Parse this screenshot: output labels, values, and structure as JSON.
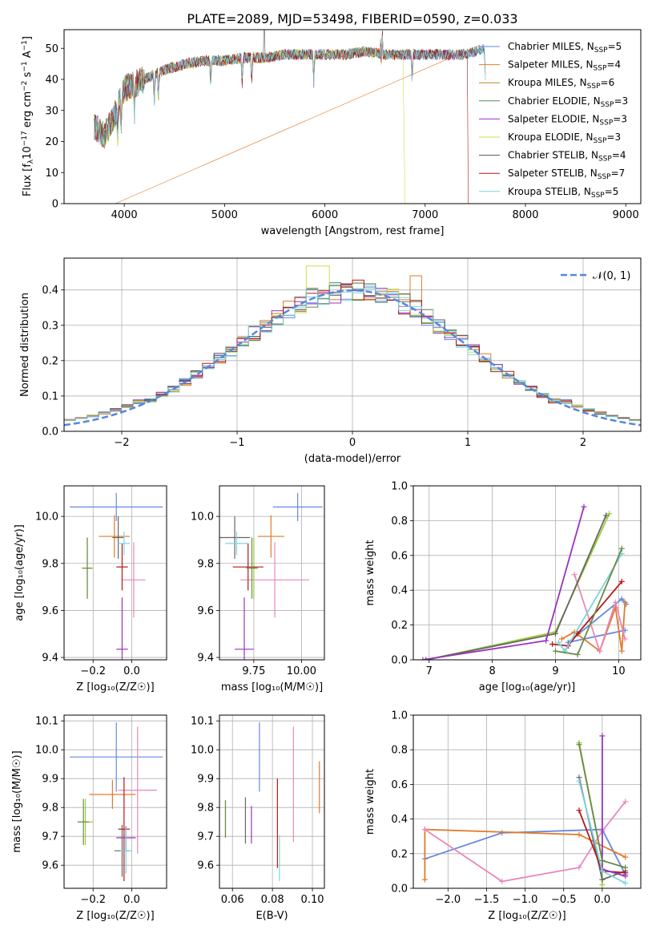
{
  "figure_title": "PLATE=2089, MJD=53498, FIBERID=0590, z=0.033",
  "palette": [
    "#6688dd",
    "#e07b2a",
    "#b58a2a",
    "#5a8a5a",
    "#9933bb",
    "#c8e04a",
    "#555555",
    "#b51818",
    "#7dd4dc"
  ],
  "subplot_colors": [
    "#6688dd",
    "#e07b2a",
    "#e888bb",
    "#9acd32",
    "#666666",
    "#b51818",
    "#9933bb",
    "#7dd4dc",
    "#6a8a4a"
  ],
  "chart_data": [
    {
      "id": "spectrum",
      "type": "line",
      "xlabel": "wavelength [Angstrom, rest frame]",
      "ylabel_parts": {
        "main": "Flux [f",
        "sub": "λ",
        "mid": "10",
        "sup1": "−17",
        "rest": " erg cm",
        "sup2": "−2",
        "rest2": " s",
        "sup3": "−1",
        "rest3": " A",
        "sup4": "−1",
        "end": "]"
      },
      "xlim": [
        3400,
        9150
      ],
      "ylim": [
        0,
        56
      ],
      "xticks": [
        4000,
        5000,
        6000,
        7000,
        8000,
        9000
      ],
      "yticks": [
        0,
        10,
        20,
        30,
        40,
        50
      ],
      "continuum": {
        "x": [
          3700,
          3800,
          3900,
          4000,
          4200,
          4400,
          4600,
          4800,
          5000,
          5200,
          5400,
          5600,
          5800,
          6000,
          6200,
          6400,
          6600,
          6800,
          7000,
          7200,
          7400,
          7600
        ],
        "y": [
          25,
          22,
          28,
          37,
          40,
          43,
          45,
          46,
          46,
          47,
          47,
          48,
          48,
          48,
          48,
          49,
          48,
          48,
          48,
          48,
          48,
          50
        ]
      },
      "legend": [
        {
          "name": "Chabrier MILES",
          "n": "5"
        },
        {
          "name": "Salpeter MILES",
          "n": "4"
        },
        {
          "name": "Kroupa MILES",
          "n": "6"
        },
        {
          "name": "Chabrier ELODIE",
          "n": "3"
        },
        {
          "name": "Salpeter ELODIE",
          "n": "3"
        },
        {
          "name": "Kroupa ELODIE",
          "n": "3"
        },
        {
          "name": "Chabrier STELIB",
          "n": "4"
        },
        {
          "name": "Salpeter STELIB",
          "n": "7"
        },
        {
          "name": "Kroupa STELIB",
          "n": "5"
        }
      ],
      "legend_n_label": "N",
      "legend_n_sub": "SSP"
    },
    {
      "id": "residuals",
      "type": "histogram",
      "xlabel": "(data-model)/error",
      "ylabel": "Normed distribution",
      "xlim": [
        -2.5,
        2.5
      ],
      "ylim": [
        0,
        0.49
      ],
      "xticks": [
        -2,
        -1,
        0,
        1,
        2
      ],
      "yticks": [
        0.0,
        0.1,
        0.2,
        0.3,
        0.4
      ],
      "bin_width": 0.1,
      "gaussian_label": "𝒩(0, 1)",
      "gaussian_color": "#5588dd"
    },
    {
      "id": "Z_vs_age",
      "type": "errorbar",
      "xlabel": "Z [log₁₀(Z/Z☉)]",
      "ylabel": "age  [log₁₀(age/yr)]",
      "xlim": [
        -0.35,
        0.18
      ],
      "ylim": [
        9.39,
        10.13
      ],
      "xticks": [
        -0.2,
        0.0
      ],
      "yticks": [
        9.4,
        9.6,
        9.8,
        10.0
      ],
      "points": [
        {
          "x": -0.08,
          "y": 10.04,
          "xerr": 0.24,
          "yerr": 0.06
        },
        {
          "x": -0.09,
          "y": 9.915,
          "xerr": 0.08,
          "yerr": 0.09
        },
        {
          "x": 0.01,
          "y": 9.73,
          "xerr": 0.06,
          "yerr": 0.16
        },
        {
          "x": -0.23,
          "y": 9.78,
          "xerr": 0.03,
          "yerr": 0.13
        },
        {
          "x": -0.07,
          "y": 9.91,
          "xerr": 0.03,
          "yerr": 0.09
        },
        {
          "x": -0.05,
          "y": 9.785,
          "xerr": 0.03,
          "yerr": 0.1
        },
        {
          "x": -0.05,
          "y": 9.435,
          "xerr": 0.03,
          "yerr": 0.22
        },
        {
          "x": -0.04,
          "y": 9.885,
          "xerr": 0.03,
          "yerr": 0.05
        },
        {
          "x": -0.23,
          "y": 9.78,
          "xerr": 0.025,
          "yerr": 0.13
        }
      ]
    },
    {
      "id": "mass_vs_age",
      "type": "errorbar",
      "xlabel": "mass [log₁₀(M/M☉)]",
      "ylabel": "",
      "xlim": [
        9.57,
        10.12
      ],
      "ylim": [
        9.39,
        10.13
      ],
      "xticks": [
        9.75,
        10.0
      ],
      "yticks": [
        9.4,
        9.6,
        9.8,
        10.0
      ],
      "points": [
        {
          "x": 9.98,
          "y": 10.04,
          "xerr": 0.13,
          "yerr": 0.06
        },
        {
          "x": 9.84,
          "y": 9.915,
          "xerr": 0.07,
          "yerr": 0.09
        },
        {
          "x": 9.86,
          "y": 9.73,
          "xerr": 0.18,
          "yerr": 0.16
        },
        {
          "x": 9.75,
          "y": 9.78,
          "xerr": 0.02,
          "yerr": 0.13
        },
        {
          "x": 9.65,
          "y": 9.91,
          "xerr": 0.08,
          "yerr": 0.09
        },
        {
          "x": 9.72,
          "y": 9.785,
          "xerr": 0.08,
          "yerr": 0.1
        },
        {
          "x": 9.7,
          "y": 9.435,
          "xerr": 0.05,
          "yerr": 0.22
        },
        {
          "x": 9.66,
          "y": 9.885,
          "xerr": 0.06,
          "yerr": 0.05
        },
        {
          "x": 9.74,
          "y": 9.78,
          "xerr": 0.03,
          "yerr": 0.13
        }
      ]
    },
    {
      "id": "age_weight",
      "type": "line",
      "xlabel": "age  [log₁₀(age/yr)]",
      "ylabel": "mass weight",
      "xlim": [
        6.75,
        10.35
      ],
      "ylim": [
        0,
        1
      ],
      "xticks": [
        7,
        8,
        9,
        10
      ],
      "yticks": [
        0.0,
        0.2,
        0.4,
        0.6,
        0.8,
        1.0
      ],
      "series": [
        {
          "x": [
            10.1,
            9.2,
            10.05,
            10.12
          ],
          "y": [
            0.17,
            0.1,
            0.35,
            0.32
          ]
        },
        {
          "x": [
            9.1,
            9.3,
            9.7,
            9.95,
            10.05,
            10.1
          ],
          "y": [
            0.12,
            0.16,
            0.05,
            0.3,
            0.05,
            0.33
          ]
        },
        {
          "x": [
            9.3,
            9.7,
            9.95,
            10.1
          ],
          "y": [
            0.49,
            0.05,
            0.33,
            0.12
          ]
        },
        {
          "x": [
            6.95,
            9.0,
            9.85
          ],
          "y": [
            0.0,
            0.16,
            0.84
          ]
        },
        {
          "x": [
            6.95,
            9.0,
            9.8
          ],
          "y": [
            0.0,
            0.15,
            0.83
          ]
        },
        {
          "x": [
            8.95,
            9.2,
            9.35,
            10.05
          ],
          "y": [
            0.09,
            0.08,
            0.15,
            0.45
          ]
        },
        {
          "x": [
            6.9,
            8.85,
            9.45
          ],
          "y": [
            0.0,
            0.11,
            0.88
          ]
        },
        {
          "x": [
            9.05,
            9.15,
            10.05
          ],
          "y": [
            0.1,
            0.05,
            0.61
          ]
        },
        {
          "x": [
            9.0,
            9.35,
            10.05
          ],
          "y": [
            0.05,
            0.03,
            0.64
          ]
        }
      ]
    },
    {
      "id": "Z_vs_mass",
      "type": "errorbar",
      "xlabel": "Z [log₁₀(Z/Z☉)]",
      "ylabel": "mass [log₁₀(M/M☉)]",
      "xlim": [
        -0.35,
        0.18
      ],
      "ylim": [
        9.52,
        10.12
      ],
      "xticks": [
        -0.2,
        0.0
      ],
      "yticks": [
        9.6,
        9.7,
        9.8,
        9.9,
        10.0,
        10.1
      ],
      "points": [
        {
          "x": -0.08,
          "y": 9.975,
          "xerr": 0.24,
          "yerr": 0.12
        },
        {
          "x": -0.1,
          "y": 9.845,
          "xerr": 0.12,
          "yerr": 0.05
        },
        {
          "x": 0.03,
          "y": 9.86,
          "xerr": 0.1,
          "yerr": 0.22
        },
        {
          "x": -0.24,
          "y": 9.75,
          "xerr": 0.04,
          "yerr": 0.08
        },
        {
          "x": -0.05,
          "y": 9.65,
          "xerr": 0.04,
          "yerr": 0.09
        },
        {
          "x": -0.04,
          "y": 9.725,
          "xerr": 0.03,
          "yerr": 0.18
        },
        {
          "x": -0.03,
          "y": 9.695,
          "xerr": 0.05,
          "yerr": 0.04
        },
        {
          "x": -0.03,
          "y": 9.65,
          "xerr": 0.03,
          "yerr": 0.08
        },
        {
          "x": -0.25,
          "y": 9.75,
          "xerr": 0.03,
          "yerr": 0.08
        }
      ]
    },
    {
      "id": "ebv_vs_mass",
      "type": "errorbar",
      "xlabel": "E(B-V)",
      "ylabel": "",
      "xlim": [
        0.0535,
        0.106
      ],
      "ylim": [
        9.52,
        10.12
      ],
      "xticks": [
        0.06,
        0.08,
        0.1
      ],
      "yticks": [
        9.6,
        9.7,
        9.8,
        9.9,
        10.0,
        10.1
      ],
      "points": [
        {
          "x": 0.0735,
          "y": 9.975,
          "xerr": 0,
          "yerr": 0.12
        },
        {
          "x": 0.1035,
          "y": 9.87,
          "xerr": 0,
          "yerr": 0.09
        },
        {
          "x": 0.0905,
          "y": 9.88,
          "xerr": 0,
          "yerr": 0.2
        },
        {
          "x": 0.0565,
          "y": 9.76,
          "xerr": 0,
          "yerr": 0.065
        },
        {
          "x": 0.0665,
          "y": 9.755,
          "xerr": 0,
          "yerr": 0.08
        },
        {
          "x": 0.0825,
          "y": 9.745,
          "xerr": 0,
          "yerr": 0.155
        },
        {
          "x": 0.0695,
          "y": 9.74,
          "xerr": 0,
          "yerr": 0.065
        },
        {
          "x": 0.0835,
          "y": 9.625,
          "xerr": 0,
          "yerr": 0.08
        },
        {
          "x": 0.0565,
          "y": 9.76,
          "xerr": 0,
          "yerr": 0.065
        }
      ]
    },
    {
      "id": "Z_weight",
      "type": "line",
      "xlabel": "Z [log₁₀(Z/Z☉)]",
      "ylabel": "mass weight",
      "xlim": [
        -2.45,
        0.5
      ],
      "ylim": [
        0,
        1
      ],
      "xticks": [
        -2.0,
        -1.5,
        -1.0,
        -0.5,
        0.0
      ],
      "yticks": [
        0.0,
        0.2,
        0.4,
        0.6,
        0.8,
        1.0
      ],
      "series": [
        {
          "x": [
            -2.3,
            -1.3,
            0.0,
            0.3
          ],
          "y": [
            0.17,
            0.32,
            0.34,
            0.08
          ]
        },
        {
          "x": [
            -2.3,
            -2.3,
            -0.3,
            0.3
          ],
          "y": [
            0.05,
            0.34,
            0.31,
            0.18
          ]
        },
        {
          "x": [
            -2.3,
            -1.3,
            -0.3,
            0.0,
            0.3
          ],
          "y": [
            0.34,
            0.04,
            0.12,
            0.33,
            0.5
          ]
        },
        {
          "x": [
            -0.3,
            0.0,
            0.0
          ],
          "y": [
            0.84,
            0.16,
            0.02
          ]
        },
        {
          "x": [
            -0.3,
            0.0,
            0.3
          ],
          "y": [
            0.64,
            0.05,
            0.1
          ]
        },
        {
          "x": [
            -0.3,
            0.0,
            0.3
          ],
          "y": [
            0.45,
            0.1,
            0.09
          ]
        },
        {
          "x": [
            0.0,
            0.0,
            0.3
          ],
          "y": [
            0.88,
            0.11,
            0.07
          ]
        },
        {
          "x": [
            -0.3,
            0.0,
            0.3
          ],
          "y": [
            0.62,
            0.1,
            0.03
          ]
        },
        {
          "x": [
            -0.3,
            0.0,
            0.3
          ],
          "y": [
            0.83,
            0.16,
            0.12
          ]
        }
      ]
    }
  ]
}
